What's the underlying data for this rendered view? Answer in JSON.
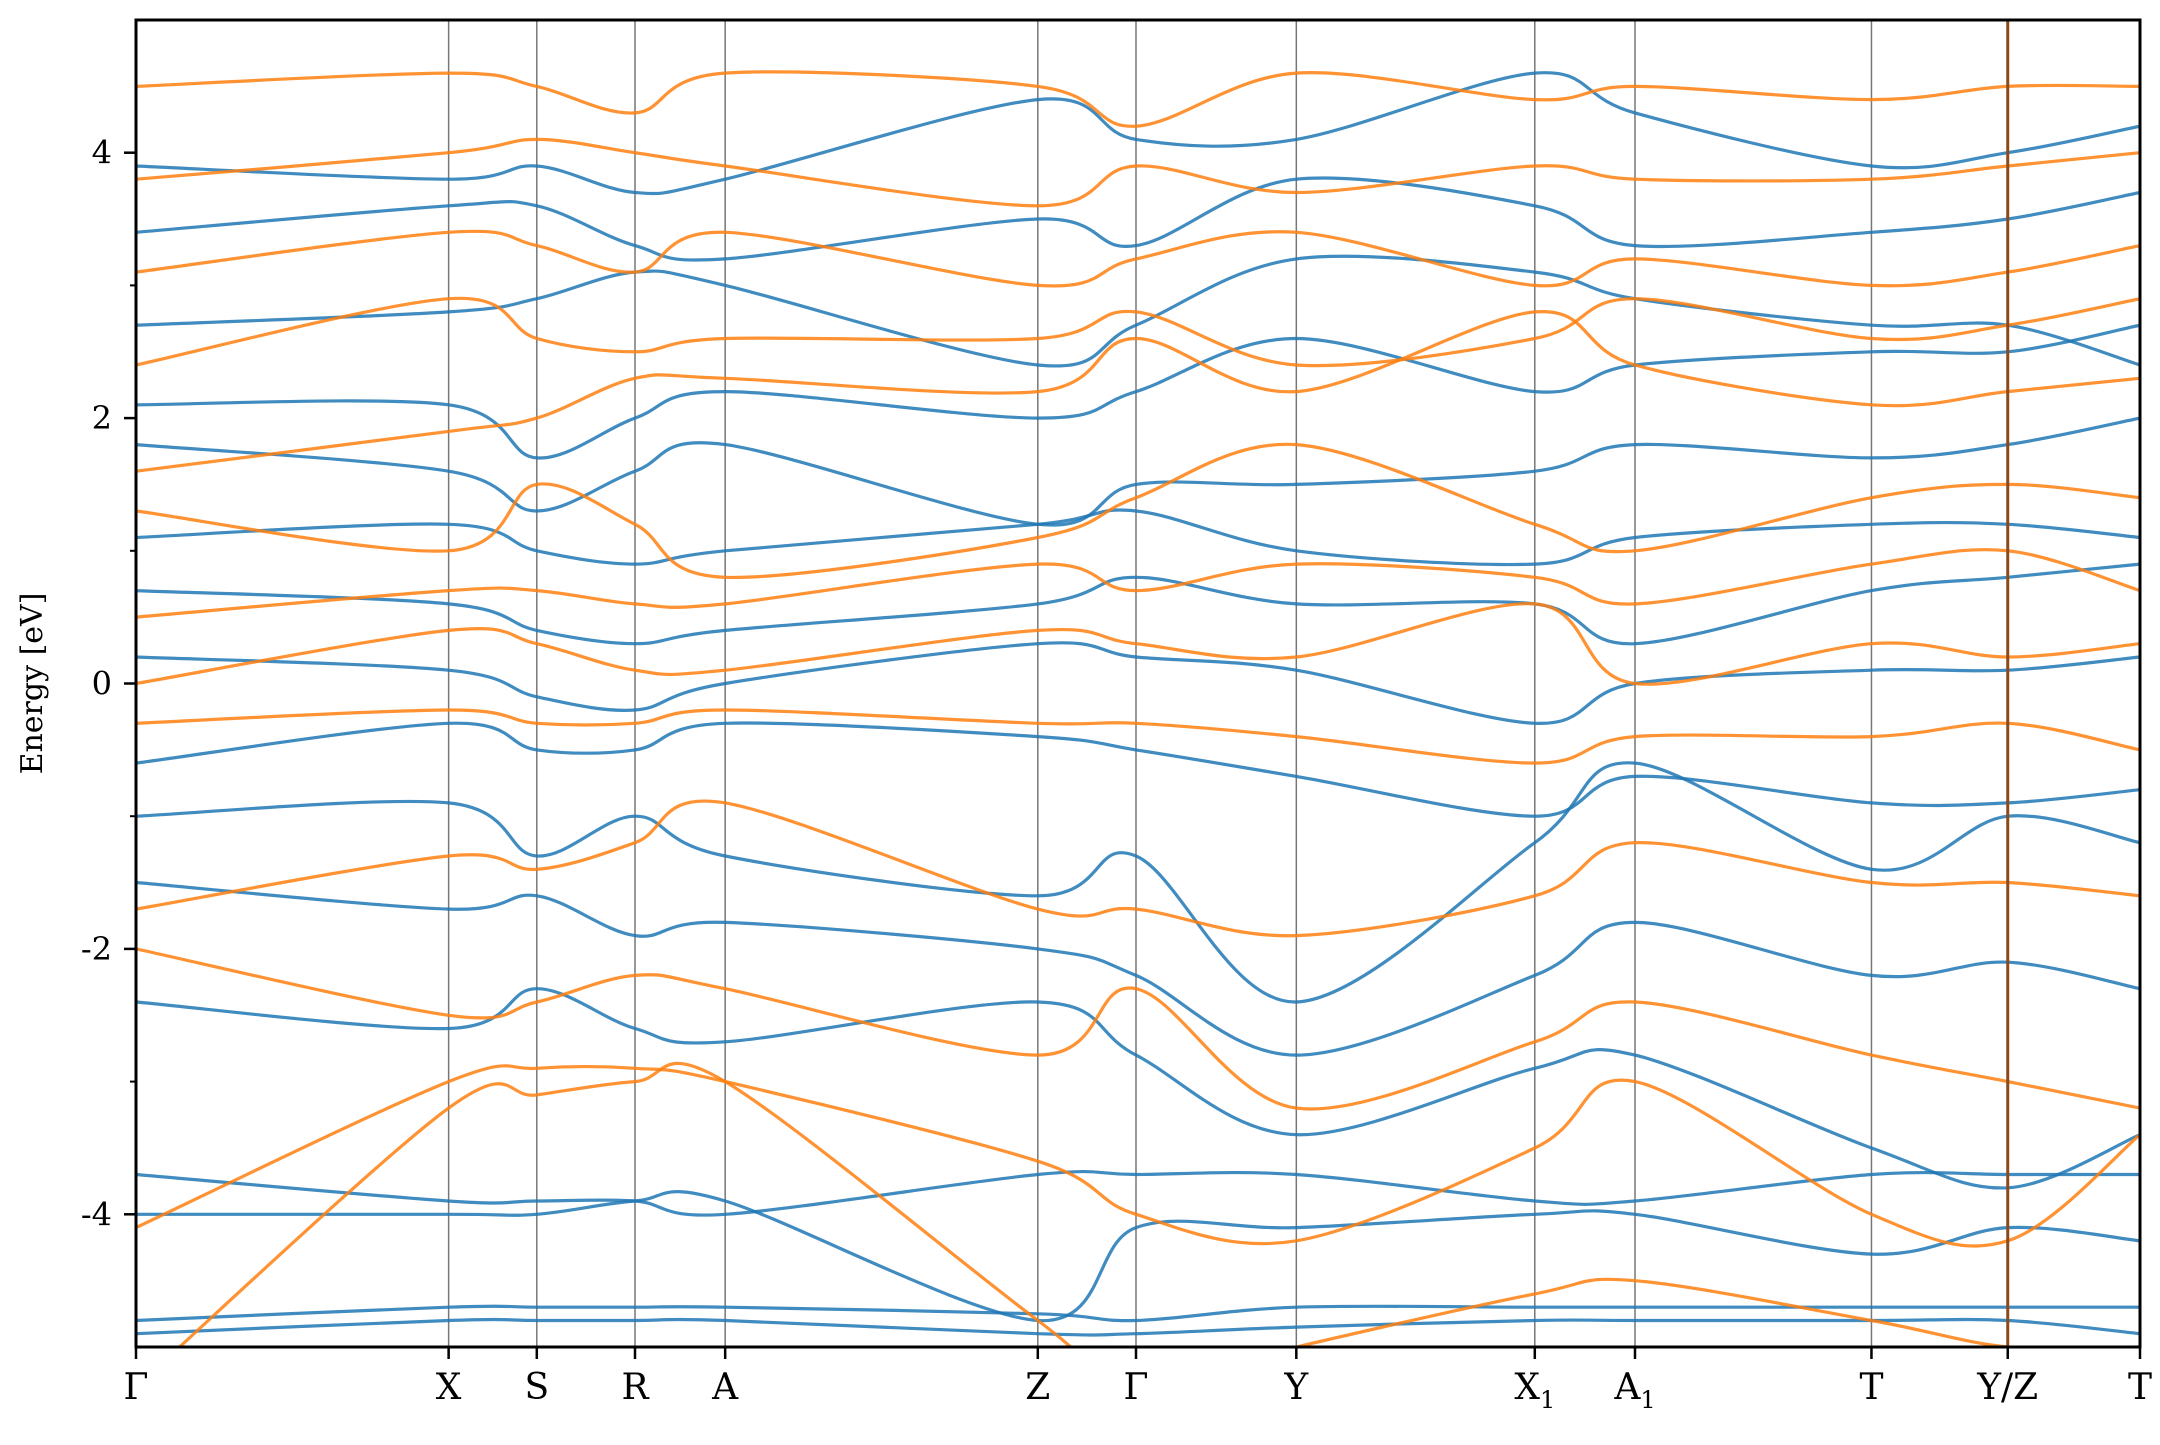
{
  "chart_data": {
    "type": "line",
    "title": "",
    "xlabel": "",
    "ylabel": "Energy [eV]",
    "ylim": [
      -5,
      5
    ],
    "yticks": [
      {
        "value": -4,
        "label": "-4"
      },
      {
        "value": -2,
        "label": "-2"
      },
      {
        "value": 0,
        "label": "0"
      },
      {
        "value": 2,
        "label": "2"
      },
      {
        "value": 4,
        "label": "4"
      }
    ],
    "yminor": [
      -5,
      -3,
      -1,
      1,
      3,
      5
    ],
    "kpath": {
      "range": [
        0,
        100
      ],
      "segment_breaks": [
        93.4
      ],
      "ticks": [
        {
          "pos": 0.0,
          "label": "Γ"
        },
        {
          "pos": 15.6,
          "label": "X"
        },
        {
          "pos": 20.0,
          "label": "S"
        },
        {
          "pos": 24.9,
          "label": "R"
        },
        {
          "pos": 29.4,
          "label": "A"
        },
        {
          "pos": 45.0,
          "label": "Z"
        },
        {
          "pos": 49.9,
          "label": "Γ"
        },
        {
          "pos": 57.9,
          "label": "Y"
        },
        {
          "pos": 69.8,
          "label": "X",
          "sub": "1"
        },
        {
          "pos": 74.8,
          "label": "A",
          "sub": "1"
        },
        {
          "pos": 86.6,
          "label": "T"
        },
        {
          "pos": 93.4,
          "label": "Y/Z"
        },
        {
          "pos": 100.0,
          "label": "T"
        }
      ]
    },
    "series": [
      {
        "color": "#1f77b4",
        "opacity": 0.85,
        "k": [
          0,
          15.6,
          20,
          24.9,
          29.4,
          45,
          49.9,
          57.9,
          69.8,
          74.8,
          86.6,
          93.4,
          100
        ],
        "y": [
          0.2,
          0.1,
          -0.1,
          -0.2,
          0.0,
          0.3,
          0.2,
          0.1,
          -0.3,
          0.0,
          0.1,
          0.1,
          0.2
        ]
      },
      {
        "color": "#1f77b4",
        "opacity": 0.85,
        "k": [
          0,
          15.6,
          20,
          24.9,
          29.4,
          45,
          49.9,
          57.9,
          69.8,
          74.8,
          86.6,
          93.4,
          100
        ],
        "y": [
          -0.6,
          -0.3,
          -0.5,
          -0.5,
          -0.3,
          -0.4,
          -0.5,
          -0.7,
          -1.0,
          -0.7,
          -0.9,
          -0.9,
          -0.8
        ]
      },
      {
        "color": "#1f77b4",
        "opacity": 0.85,
        "k": [
          0,
          15.6,
          20,
          24.9,
          29.4,
          45,
          49.9,
          57.9,
          69.8,
          74.8,
          86.6,
          93.4,
          100
        ],
        "y": [
          0.7,
          0.6,
          0.4,
          0.3,
          0.4,
          0.6,
          0.8,
          0.6,
          0.6,
          0.3,
          0.7,
          0.8,
          0.9
        ]
      },
      {
        "color": "#1f77b4",
        "opacity": 0.85,
        "k": [
          0,
          15.6,
          20,
          24.9,
          29.4,
          45,
          49.9,
          57.9,
          69.8,
          74.8,
          86.6,
          93.4,
          100
        ],
        "y": [
          1.1,
          1.2,
          1.0,
          0.9,
          1.0,
          1.2,
          1.3,
          1.0,
          0.9,
          1.1,
          1.2,
          1.2,
          1.1
        ]
      },
      {
        "color": "#1f77b4",
        "opacity": 0.85,
        "k": [
          0,
          15.6,
          20,
          24.9,
          29.4,
          45,
          49.9,
          57.9,
          69.8,
          74.8,
          86.6,
          93.4,
          100
        ],
        "y": [
          1.8,
          1.6,
          1.3,
          1.6,
          1.8,
          1.2,
          1.5,
          1.5,
          1.6,
          1.8,
          1.7,
          1.8,
          2.0
        ]
      },
      {
        "color": "#1f77b4",
        "opacity": 0.85,
        "k": [
          0,
          15.6,
          20,
          24.9,
          29.4,
          45,
          49.9,
          57.9,
          69.8,
          74.8,
          86.6,
          93.4,
          100
        ],
        "y": [
          2.1,
          2.1,
          1.7,
          2.0,
          2.2,
          2.0,
          2.2,
          2.6,
          2.2,
          2.4,
          2.5,
          2.5,
          2.7
        ]
      },
      {
        "color": "#1f77b4",
        "opacity": 0.85,
        "k": [
          0,
          15.6,
          20,
          24.9,
          29.4,
          45,
          49.9,
          57.9,
          69.8,
          74.8,
          86.6,
          93.4,
          100
        ],
        "y": [
          2.7,
          2.8,
          2.9,
          3.1,
          3.0,
          2.4,
          2.7,
          3.2,
          3.1,
          2.9,
          2.7,
          2.7,
          2.4
        ]
      },
      {
        "color": "#1f77b4",
        "opacity": 0.85,
        "k": [
          0,
          15.6,
          20,
          24.9,
          29.4,
          45,
          49.9,
          57.9,
          69.8,
          74.8,
          86.6,
          93.4,
          100
        ],
        "y": [
          3.4,
          3.6,
          3.6,
          3.3,
          3.2,
          3.5,
          3.3,
          3.8,
          3.6,
          3.3,
          3.4,
          3.5,
          3.7
        ]
      },
      {
        "color": "#1f77b4",
        "opacity": 0.85,
        "k": [
          0,
          15.6,
          20,
          24.9,
          29.4,
          45,
          49.9,
          57.9,
          69.8,
          74.8,
          86.6,
          93.4,
          100
        ],
        "y": [
          3.9,
          3.8,
          3.9,
          3.7,
          3.8,
          4.4,
          4.1,
          4.1,
          4.6,
          4.3,
          3.9,
          4.0,
          4.2
        ]
      },
      {
        "color": "#1f77b4",
        "opacity": 0.85,
        "k": [
          0,
          15.6,
          20,
          24.9,
          29.4,
          45,
          49.9,
          57.9,
          69.8,
          74.8,
          86.6,
          93.4,
          100
        ],
        "y": [
          -1.0,
          -0.9,
          -1.3,
          -1.0,
          -1.3,
          -1.6,
          -1.3,
          -2.4,
          -1.2,
          -0.6,
          -1.4,
          -1.0,
          -1.2
        ]
      },
      {
        "color": "#1f77b4",
        "opacity": 0.85,
        "k": [
          0,
          15.6,
          20,
          24.9,
          29.4,
          45,
          49.9,
          57.9,
          69.8,
          74.8,
          86.6,
          93.4,
          100
        ],
        "y": [
          -1.5,
          -1.7,
          -1.6,
          -1.9,
          -1.8,
          -2.0,
          -2.2,
          -2.8,
          -2.2,
          -1.8,
          -2.2,
          -2.1,
          -2.3
        ]
      },
      {
        "color": "#1f77b4",
        "opacity": 0.85,
        "k": [
          0,
          15.6,
          20,
          24.9,
          29.4,
          45,
          49.9,
          57.9,
          69.8,
          74.8,
          86.6,
          93.4,
          100
        ],
        "y": [
          -2.4,
          -2.6,
          -2.3,
          -2.6,
          -2.7,
          -2.4,
          -2.8,
          -3.4,
          -2.9,
          -2.8,
          -3.5,
          -3.8,
          -3.4
        ]
      },
      {
        "color": "#1f77b4",
        "opacity": 0.85,
        "k": [
          0,
          15.6,
          20,
          24.9,
          29.4,
          45,
          49.9,
          57.9,
          69.8,
          74.8,
          86.6,
          93.4,
          100
        ],
        "y": [
          -3.7,
          -3.9,
          -3.9,
          -3.9,
          -4.0,
          -3.7,
          -3.7,
          -3.7,
          -3.9,
          -3.9,
          -3.7,
          -3.7,
          -3.7
        ]
      },
      {
        "color": "#1f77b4",
        "opacity": 0.85,
        "k": [
          0,
          15.6,
          20,
          24.9,
          29.4,
          45,
          49.9,
          57.9,
          69.8,
          74.8,
          86.6,
          93.4,
          100
        ],
        "y": [
          -4.0,
          -4.0,
          -4.0,
          -3.9,
          -3.9,
          -4.8,
          -4.1,
          -4.1,
          -4.0,
          -4.0,
          -4.3,
          -4.1,
          -4.2
        ]
      },
      {
        "color": "#1f77b4",
        "opacity": 0.85,
        "k": [
          0,
          15.6,
          20,
          24.9,
          29.4,
          45,
          49.9,
          57.9,
          69.8,
          74.8,
          86.6,
          93.4,
          100
        ],
        "y": [
          -4.8,
          -4.7,
          -4.7,
          -4.7,
          -4.7,
          -4.75,
          -4.8,
          -4.7,
          -4.7,
          -4.7,
          -4.7,
          -4.7,
          -4.7
        ]
      },
      {
        "color": "#1f77b4",
        "opacity": 0.85,
        "k": [
          0,
          15.6,
          20,
          24.9,
          29.4,
          45,
          49.9,
          57.9,
          69.8,
          74.8,
          86.6,
          93.4,
          100
        ],
        "y": [
          -4.9,
          -4.8,
          -4.8,
          -4.8,
          -4.8,
          -4.9,
          -4.9,
          -4.85,
          -4.8,
          -4.8,
          -4.8,
          -4.8,
          -4.9
        ]
      },
      {
        "color": "#ff7f0e",
        "opacity": 0.85,
        "k": [
          0,
          15.6,
          20,
          24.9,
          29.4,
          45,
          49.9,
          57.9,
          69.8,
          74.8,
          86.6,
          93.4,
          100
        ],
        "y": [
          0.0,
          0.4,
          0.3,
          0.1,
          0.1,
          0.4,
          0.3,
          0.2,
          0.6,
          0.0,
          0.3,
          0.2,
          0.3
        ]
      },
      {
        "color": "#ff7f0e",
        "opacity": 0.85,
        "k": [
          0,
          15.6,
          20,
          24.9,
          29.4,
          45,
          49.9,
          57.9,
          69.8,
          74.8,
          86.6,
          93.4,
          100
        ],
        "y": [
          -0.3,
          -0.2,
          -0.3,
          -0.3,
          -0.2,
          -0.3,
          -0.3,
          -0.4,
          -0.6,
          -0.4,
          -0.4,
          -0.3,
          -0.5
        ]
      },
      {
        "color": "#ff7f0e",
        "opacity": 0.85,
        "k": [
          0,
          15.6,
          20,
          24.9,
          29.4,
          45,
          49.9,
          57.9,
          69.8,
          74.8,
          86.6,
          93.4,
          100
        ],
        "y": [
          0.5,
          0.7,
          0.7,
          0.6,
          0.6,
          0.9,
          0.7,
          0.9,
          0.8,
          0.6,
          0.9,
          1.0,
          0.7
        ]
      },
      {
        "color": "#ff7f0e",
        "opacity": 0.85,
        "k": [
          0,
          15.6,
          20,
          24.9,
          29.4,
          45,
          49.9,
          57.9,
          69.8,
          74.8,
          86.6,
          93.4,
          100
        ],
        "y": [
          1.3,
          1.0,
          1.5,
          1.2,
          0.8,
          1.1,
          1.4,
          1.8,
          1.2,
          1.0,
          1.4,
          1.5,
          1.4
        ]
      },
      {
        "color": "#ff7f0e",
        "opacity": 0.85,
        "k": [
          0,
          15.6,
          20,
          24.9,
          29.4,
          45,
          49.9,
          57.9,
          69.8,
          74.8,
          86.6,
          93.4,
          100
        ],
        "y": [
          1.6,
          1.9,
          2.0,
          2.3,
          2.3,
          2.2,
          2.6,
          2.2,
          2.8,
          2.4,
          2.1,
          2.2,
          2.3
        ]
      },
      {
        "color": "#ff7f0e",
        "opacity": 0.85,
        "k": [
          0,
          15.6,
          20,
          24.9,
          29.4,
          45,
          49.9,
          57.9,
          69.8,
          74.8,
          86.6,
          93.4,
          100
        ],
        "y": [
          2.4,
          2.9,
          2.6,
          2.5,
          2.6,
          2.6,
          2.8,
          2.4,
          2.6,
          2.9,
          2.6,
          2.7,
          2.9
        ]
      },
      {
        "color": "#ff7f0e",
        "opacity": 0.85,
        "k": [
          0,
          15.6,
          20,
          24.9,
          29.4,
          45,
          49.9,
          57.9,
          69.8,
          74.8,
          86.6,
          93.4,
          100
        ],
        "y": [
          3.1,
          3.4,
          3.3,
          3.1,
          3.4,
          3.0,
          3.2,
          3.4,
          3.0,
          3.2,
          3.0,
          3.1,
          3.3
        ]
      },
      {
        "color": "#ff7f0e",
        "opacity": 0.85,
        "k": [
          0,
          15.6,
          20,
          24.9,
          29.4,
          45,
          49.9,
          57.9,
          69.8,
          74.8,
          86.6,
          93.4,
          100
        ],
        "y": [
          3.8,
          4.0,
          4.1,
          4.0,
          3.9,
          3.6,
          3.9,
          3.7,
          3.9,
          3.8,
          3.8,
          3.9,
          4.0
        ]
      },
      {
        "color": "#ff7f0e",
        "opacity": 0.85,
        "k": [
          0,
          15.6,
          20,
          24.9,
          29.4,
          45,
          49.9,
          57.9,
          69.8,
          74.8,
          86.6,
          93.4,
          100
        ],
        "y": [
          4.5,
          4.6,
          4.5,
          4.3,
          4.6,
          4.5,
          4.2,
          4.6,
          4.4,
          4.5,
          4.4,
          4.5,
          4.5
        ]
      },
      {
        "color": "#ff7f0e",
        "opacity": 0.85,
        "k": [
          0,
          15.6,
          20,
          24.9,
          29.4,
          45,
          49.9,
          57.9,
          69.8,
          74.8,
          86.6,
          93.4,
          100
        ],
        "y": [
          -1.7,
          -1.3,
          -1.4,
          -1.2,
          -0.9,
          -1.7,
          -1.7,
          -1.9,
          -1.6,
          -1.2,
          -1.5,
          -1.5,
          -1.6
        ]
      },
      {
        "color": "#ff7f0e",
        "opacity": 0.85,
        "k": [
          0,
          15.6,
          20,
          24.9,
          29.4,
          45,
          49.9,
          57.9,
          69.8,
          74.8,
          86.6,
          93.4,
          100
        ],
        "y": [
          -2.0,
          -2.5,
          -2.4,
          -2.2,
          -2.3,
          -2.8,
          -2.3,
          -3.2,
          -2.7,
          -2.4,
          -2.8,
          -3.0,
          -3.2
        ]
      },
      {
        "color": "#ff7f0e",
        "opacity": 0.85,
        "k": [
          0,
          15.6,
          20,
          24.9,
          29.4,
          45,
          49.9,
          57.9,
          69.8,
          74.8,
          86.6,
          93.4,
          100
        ],
        "y": [
          -4.1,
          -3.0,
          -2.9,
          -2.9,
          -3.0,
          -3.6,
          -4.0,
          -4.2,
          -3.5,
          -3.0,
          -4.0,
          -4.2,
          -3.4
        ]
      },
      {
        "color": "#ff7f0e",
        "opacity": 0.85,
        "k": [
          0,
          15.6,
          20,
          24.9,
          29.4,
          45,
          49.9,
          57.9,
          69.8,
          74.8,
          86.6,
          93.4,
          100
        ],
        "y": [
          -5.3,
          -3.2,
          -3.1,
          -3.0,
          -3.0,
          -4.8,
          -5.3,
          -5.0,
          -4.6,
          -4.5,
          -4.8,
          -5.0,
          -5.0
        ]
      }
    ]
  }
}
